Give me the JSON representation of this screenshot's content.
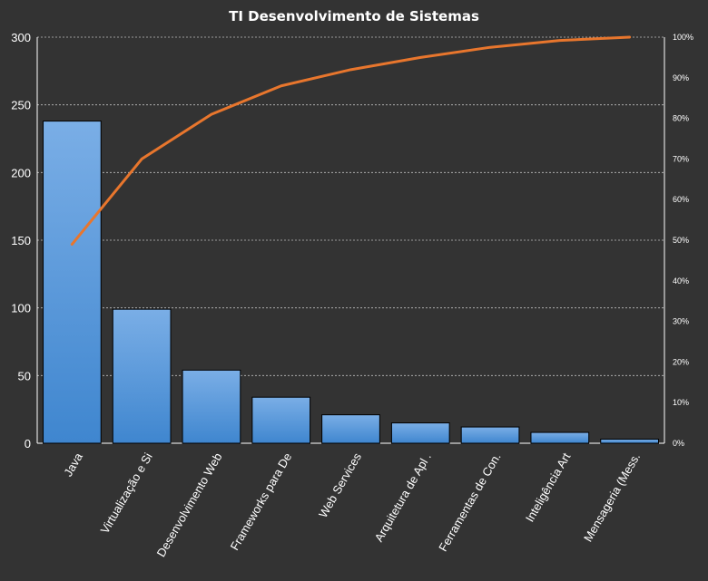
{
  "chart_data": {
    "type": "bar",
    "title": "TI Desenvolvimento  de Sistemas",
    "categories": [
      "Java",
      "Virtualização e Si",
      "Desenvolvimento Web",
      "Frameworks  para De",
      "Web Services",
      "Arquitetura de Apl .",
      "Ferramentas  de Con.",
      "Inteligência Art",
      "Mensageria (Mess."
    ],
    "series": [
      {
        "type": "bar",
        "values": [
          238,
          99,
          54,
          34,
          21,
          15,
          12,
          8,
          3
        ]
      },
      {
        "type": "line",
        "axis": "secondary",
        "values": [
          49,
          70,
          81,
          88,
          92,
          95,
          97.5,
          99.2,
          100
        ]
      }
    ],
    "ylim": [
      0,
      300
    ],
    "yticks": [
      "0",
      "50",
      "100",
      "150",
      "200",
      "250",
      "300"
    ],
    "y2lim": [
      0,
      100
    ],
    "y2ticks": [
      "0%",
      "10%",
      "20%",
      "30%",
      "40%",
      "50%",
      "60%",
      "70%",
      "80%",
      "90%",
      "100%"
    ],
    "grid": true,
    "legend": "none",
    "colors": {
      "bar_top": "#7aaee6",
      "bar_bottom": "#3f86cf",
      "line": "#e8762d",
      "background": "#333333",
      "grid": "#bfbfbf"
    }
  }
}
